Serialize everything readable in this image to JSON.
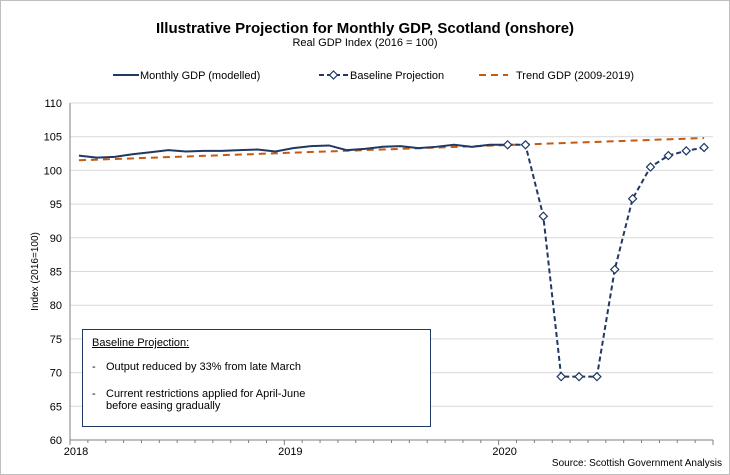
{
  "chart_data": {
    "type": "line",
    "title": "Illustrative Projection for Monthly GDP, Scotland (onshore)",
    "subtitle": "Real GDP Index (2016 = 100)",
    "ylabel": "Index (2016=100)",
    "xlabel": "",
    "ylim": [
      60,
      110
    ],
    "yticks": [
      60,
      65,
      70,
      75,
      80,
      85,
      90,
      95,
      100,
      105,
      110
    ],
    "xticks": [
      "2018",
      "2019",
      "2020"
    ],
    "grid": true,
    "legend_position": "top",
    "series": [
      {
        "name": "Monthly GDP (modelled)",
        "style": "solid",
        "color": "#1f3864",
        "x": [
          "2018-01",
          "2018-02",
          "2018-03",
          "2018-04",
          "2018-05",
          "2018-06",
          "2018-07",
          "2018-08",
          "2018-09",
          "2018-10",
          "2018-11",
          "2018-12",
          "2019-01",
          "2019-02",
          "2019-03",
          "2019-04",
          "2019-05",
          "2019-06",
          "2019-07",
          "2019-08",
          "2019-09",
          "2019-10",
          "2019-11",
          "2019-12",
          "2020-01"
        ],
        "values": [
          102.2,
          101.9,
          102.0,
          102.4,
          102.7,
          103.0,
          102.8,
          102.9,
          102.9,
          103.0,
          103.1,
          102.8,
          103.3,
          103.6,
          103.7,
          103.0,
          103.2,
          103.5,
          103.6,
          103.3,
          103.5,
          103.8,
          103.5,
          103.8,
          103.8
        ]
      },
      {
        "name": "Baseline Projection",
        "style": "dashed-diamond",
        "color": "#1f3864",
        "x": [
          "2020-01",
          "2020-02",
          "2020-03",
          "2020-04",
          "2020-05",
          "2020-06",
          "2020-07",
          "2020-08",
          "2020-09",
          "2020-10",
          "2020-11",
          "2020-12"
        ],
        "values": [
          103.8,
          103.8,
          93.2,
          69.4,
          69.4,
          69.4,
          85.3,
          95.8,
          100.5,
          102.2,
          102.9,
          103.4
        ]
      },
      {
        "name": "Trend GDP (2009-2019)",
        "style": "dashed",
        "color": "#c55a11",
        "x": [
          "2018-01",
          "2020-12"
        ],
        "values": [
          101.5,
          104.8
        ]
      }
    ],
    "annotation": {
      "title": "Baseline Projection:",
      "items": [
        "Output reduced by 33% from late March",
        "Current restrictions applied for April-June\nbefore easing gradually"
      ]
    },
    "source": "Source: Scottish Government Analysis"
  }
}
